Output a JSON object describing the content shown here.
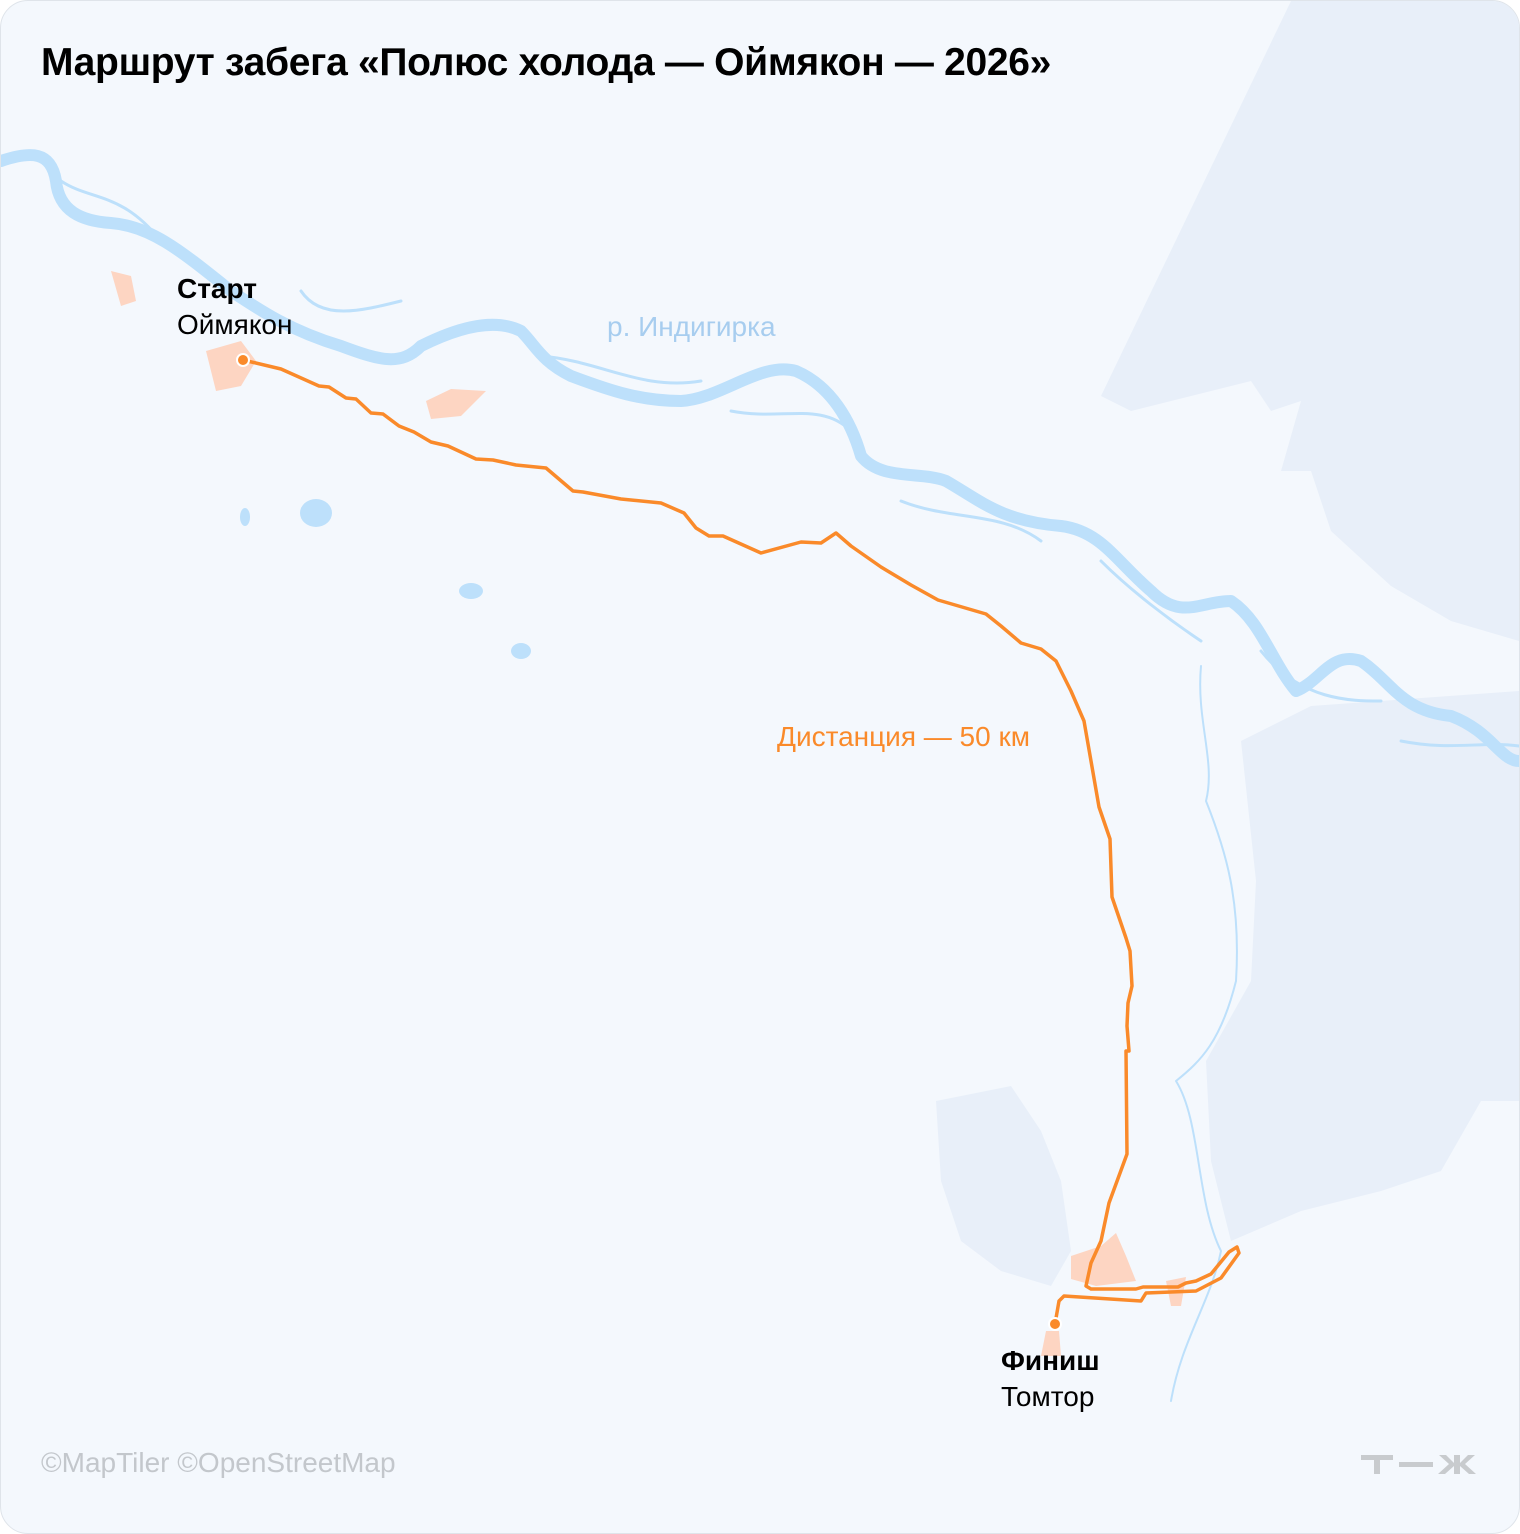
{
  "title": "Маршрут забега «Полюс холода — Оймякон — 2026»",
  "start": {
    "label": "Старт",
    "place": "Оймякон"
  },
  "finish": {
    "label": "Финиш",
    "place": "Томтор"
  },
  "river_label": "р. Индигирка",
  "distance_label": "Дистанция — 50 км",
  "credits": "©MapTiler ©OpenStreetMap",
  "logo_text": "Т—Ж",
  "colors": {
    "route": "#fa8a2a",
    "river": "#bde0fb",
    "settlement": "#fdd5c2",
    "background": "#f4f8fd",
    "terrain": "#e8eff9"
  }
}
